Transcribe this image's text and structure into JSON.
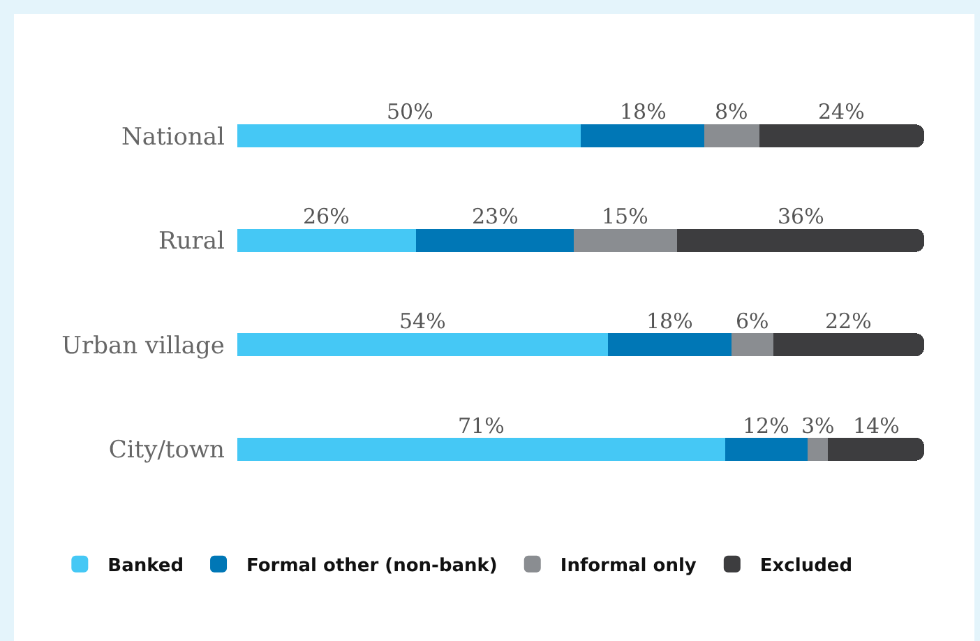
{
  "chart_data": {
    "type": "bar",
    "orientation": "horizontal",
    "stacked": true,
    "legend": "bottom",
    "grid": false,
    "tick_labels": "y",
    "xlim": [
      0,
      100
    ],
    "categories": [
      "National",
      "Rural",
      "Urban village",
      "City/town"
    ],
    "series": [
      {
        "name": "Banked",
        "color": "#45c8f5",
        "values": [
          50,
          26,
          54,
          71
        ],
        "value_labels": [
          "50%",
          "26%",
          "54%",
          "71%"
        ]
      },
      {
        "name": "Formal other (non-bank)",
        "color": "#0077b6",
        "values": [
          18,
          23,
          18,
          12
        ],
        "value_labels": [
          "18%",
          "23%",
          "18%",
          "12%"
        ]
      },
      {
        "name": "Informal only",
        "color": "#8a8d91",
        "values": [
          8,
          15,
          6,
          3
        ],
        "value_labels": [
          "8%",
          "15%",
          "6%",
          "3%"
        ]
      },
      {
        "name": "Excluded",
        "color": "#3d3d3f",
        "values": [
          24,
          36,
          22,
          14
        ],
        "value_labels": [
          "24%",
          "36%",
          "22%",
          "14%"
        ]
      }
    ]
  }
}
